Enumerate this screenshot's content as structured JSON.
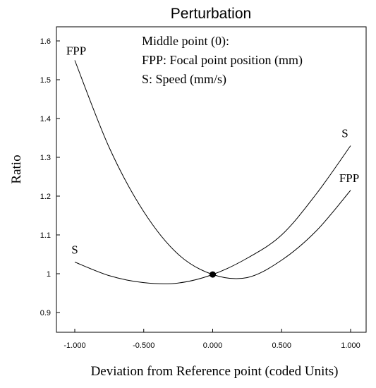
{
  "chart_data": {
    "type": "line",
    "title": "Perturbation",
    "xlabel": "Deviation from Reference point (coded Units)",
    "ylabel": "Ratio",
    "xlim": [
      -1.1,
      1.15
    ],
    "ylim": [
      0.85,
      1.65
    ],
    "x_ticks": [
      -1.0,
      -0.5,
      0.0,
      0.5,
      1.0
    ],
    "x_tick_labels": [
      "-1.000",
      "-0.500",
      "0.000",
      "0.500",
      "1.000"
    ],
    "y_ticks": [
      0.9,
      1.0,
      1.1,
      1.2,
      1.3,
      1.4,
      1.5,
      1.6
    ],
    "y_tick_labels": [
      "0.9",
      "1",
      "1.1",
      "1.2",
      "1.3",
      "1.4",
      "1.5",
      "1.6"
    ],
    "grid": false,
    "annotation_lines": [
      "Middle point (0):",
      "FPP: Focal point position (mm)",
      "S: Speed (mm/s)"
    ],
    "reference_point": {
      "x": 0.0,
      "y": 0.998
    },
    "series": [
      {
        "name": "FPP",
        "label_start": "FPP",
        "label_end": "FPP",
        "x": [
          -1.0,
          -0.75,
          -0.5,
          -0.25,
          0.0,
          0.25,
          0.5,
          0.75,
          1.0
        ],
        "y": [
          1.55,
          1.325,
          1.16,
          1.05,
          0.998,
          0.99,
          1.035,
          1.11,
          1.215
        ]
      },
      {
        "name": "S",
        "label_start": "S",
        "label_end": "S",
        "x": [
          -1.0,
          -0.75,
          -0.5,
          -0.25,
          0.0,
          0.25,
          0.5,
          0.75,
          1.0
        ],
        "y": [
          1.03,
          0.995,
          0.977,
          0.976,
          0.998,
          1.04,
          1.1,
          1.205,
          1.33
        ]
      }
    ]
  }
}
